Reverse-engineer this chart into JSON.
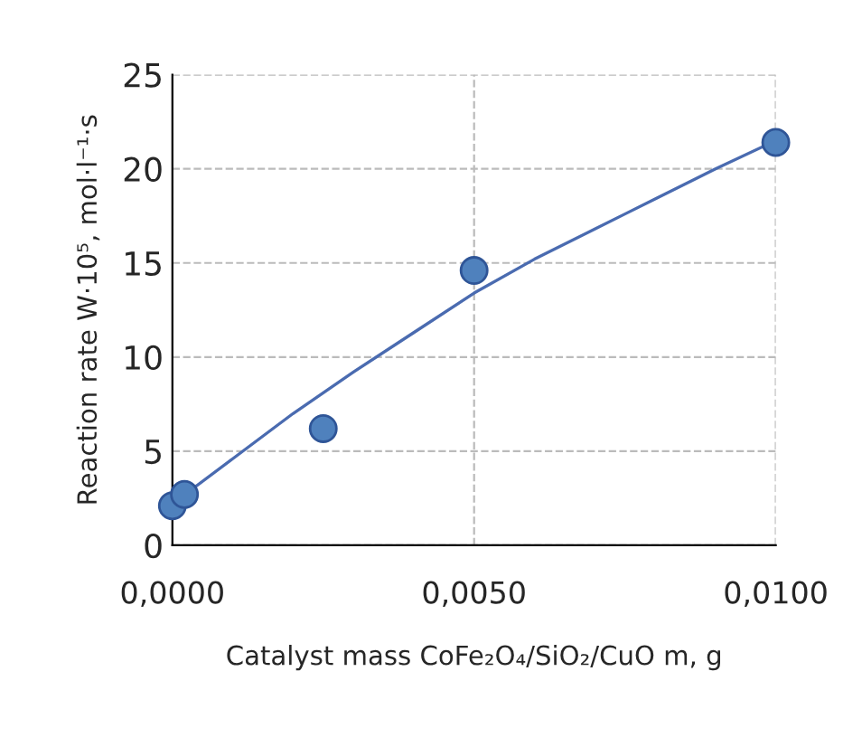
{
  "chart_data": {
    "type": "scatter",
    "xlabel": "Catalyst mass CoFe₂O₄/SiO₂/CuO m, g",
    "ylabel": "Reaction rate W·10⁵, mol·l⁻¹·s",
    "xlim": [
      0,
      0.01
    ],
    "ylim": [
      0,
      25
    ],
    "xticks": [
      {
        "value": 0,
        "label": "0,0000"
      },
      {
        "value": 0.005,
        "label": "0,0050"
      },
      {
        "value": 0.01,
        "label": "0,0100"
      }
    ],
    "yticks": [
      0,
      5,
      10,
      15,
      20,
      25
    ],
    "grid": true,
    "series": [
      {
        "marker": "circle",
        "color": "#4f81bd",
        "x": [
          0.0,
          0.0002,
          0.0025,
          0.005,
          0.01
        ],
        "values": [
          2.1,
          2.7,
          6.2,
          14.6,
          21.4
        ]
      },
      {
        "type": "line",
        "color": "#4a6bb0",
        "marker": "none",
        "x": [
          0,
          0.001,
          0.002,
          0.0025,
          0.003,
          0.004,
          0.005,
          0.006,
          0.007,
          0.0075,
          0.008,
          0.009,
          0.01
        ],
        "values": [
          2.2,
          4.6,
          7.0,
          8.1,
          9.2,
          11.3,
          13.4,
          15.2,
          16.8,
          17.6,
          18.4,
          20.0,
          21.5
        ]
      }
    ]
  }
}
